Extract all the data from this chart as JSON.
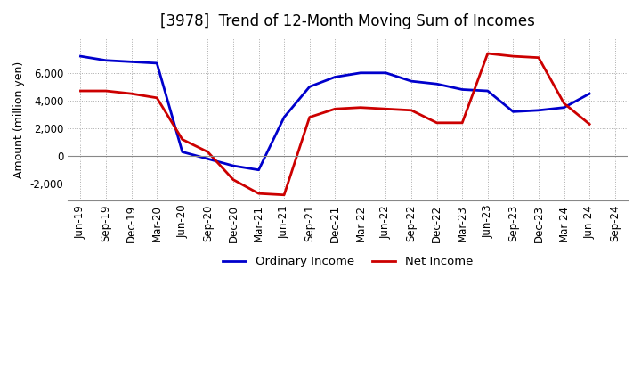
{
  "title": "[3978]  Trend of 12-Month Moving Sum of Incomes",
  "ylabel": "Amount (million yen)",
  "x_labels": [
    "Jun-19",
    "Sep-19",
    "Dec-19",
    "Mar-20",
    "Jun-20",
    "Sep-20",
    "Dec-20",
    "Mar-21",
    "Jun-21",
    "Sep-21",
    "Dec-21",
    "Mar-22",
    "Jun-22",
    "Sep-22",
    "Dec-22",
    "Mar-23",
    "Jun-23",
    "Sep-23",
    "Dec-23",
    "Mar-24",
    "Jun-24",
    "Sep-24"
  ],
  "ordinary_income": [
    7200,
    6900,
    6800,
    6700,
    300,
    -200,
    -700,
    -1000,
    2800,
    5000,
    5700,
    6000,
    6000,
    5400,
    5200,
    4800,
    4700,
    3200,
    3300,
    3500,
    4500,
    null
  ],
  "net_income": [
    4700,
    4700,
    4500,
    4200,
    1200,
    300,
    -1700,
    -2700,
    -2800,
    2800,
    3400,
    3500,
    3400,
    3300,
    2400,
    2400,
    7400,
    7200,
    7100,
    3800,
    2300,
    null
  ],
  "ordinary_income_color": "#0000cc",
  "net_income_color": "#cc0000",
  "ylim": [
    -3200,
    8500
  ],
  "yticks": [
    -2000,
    0,
    2000,
    4000,
    6000
  ],
  "background_color": "#ffffff",
  "grid_color": "#aaaaaa",
  "title_fontsize": 12,
  "axis_fontsize": 9,
  "tick_fontsize": 8.5
}
